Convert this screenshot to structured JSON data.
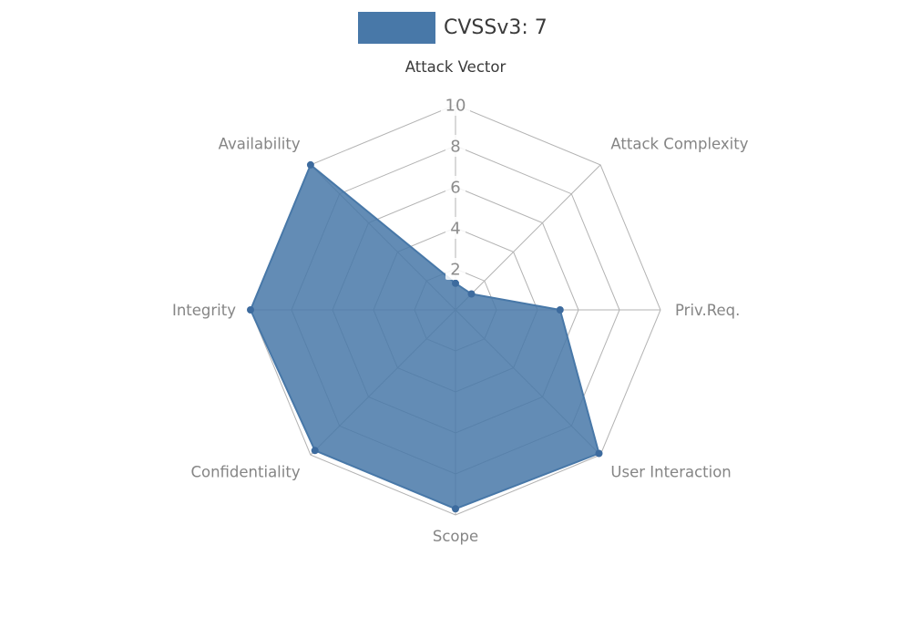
{
  "legend": {
    "label": "CVSSv3: 7",
    "swatch_color": "#4878a8"
  },
  "chart_data": {
    "type": "radar",
    "title": "CVSSv3: 7",
    "axes": [
      "Attack Vector",
      "Attack Complexity",
      "Priv.Req.",
      "User Interaction",
      "Scope",
      "Confidentiality",
      "Integrity",
      "Availability"
    ],
    "series": [
      {
        "name": "CVSSv3: 7",
        "color": "#4878a8",
        "values": [
          1.3,
          1.1,
          5.1,
          9.9,
          9.7,
          9.7,
          10,
          10
        ]
      }
    ],
    "scale": {
      "min": 0,
      "max": 10,
      "ticks": [
        10,
        8,
        6,
        4,
        2
      ]
    },
    "grid": true,
    "legend_position": "top-center",
    "style": {
      "grid_color": "#b3b3b3",
      "tick_bg": "#ffffff",
      "tick_color": "#8c8c8c",
      "axis_label_color": "#858585",
      "axis_label_primary": "#3a3a3a",
      "dot_color": "#3d6b9e"
    }
  }
}
